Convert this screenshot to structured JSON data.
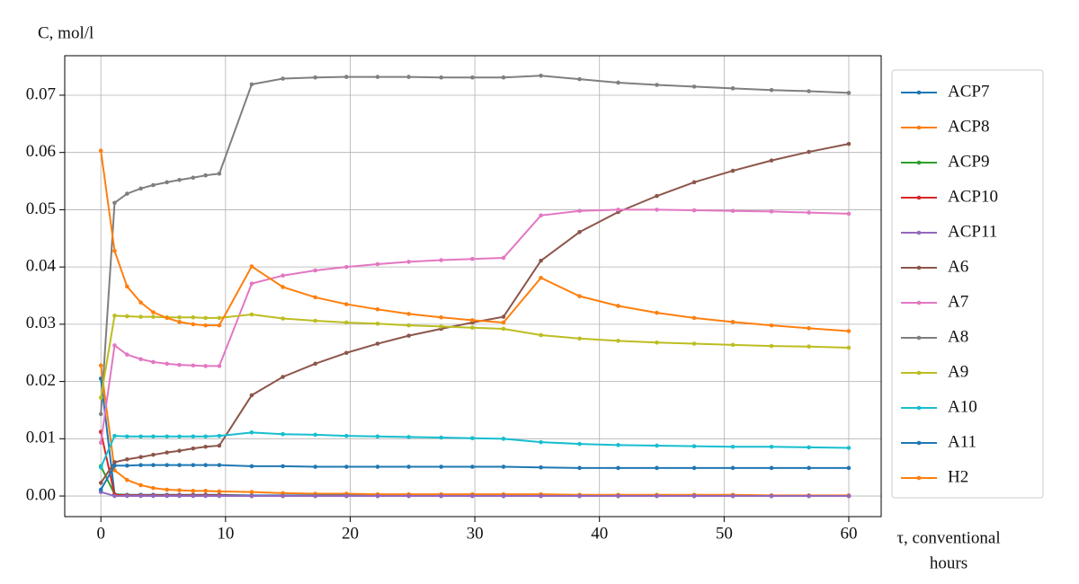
{
  "chart_data": {
    "type": "line",
    "y_label": "C, mol/l",
    "x_label": [
      "τ, conventional",
      "hours"
    ],
    "x": [
      0,
      1.1,
      2.1,
      3.2,
      4.2,
      5.3,
      6.3,
      7.4,
      8.4,
      9.5,
      12.1,
      14.6,
      17.2,
      19.7,
      22.2,
      24.7,
      27.3,
      29.8,
      32.3,
      35.3,
      38.4,
      41.5,
      44.6,
      47.6,
      50.7,
      53.8,
      56.8,
      60
    ],
    "xlim": [
      -2.9,
      62.6
    ],
    "xticks": [
      0,
      10,
      20,
      30,
      40,
      50,
      60
    ],
    "ylim": [
      -0.0036,
      0.0769
    ],
    "yticks": [
      {
        "value": 0,
        "label": "0.00"
      },
      0.01,
      0.02,
      0.03,
      0.04,
      0.05,
      0.06,
      0.07
    ],
    "grid": true,
    "legend": "outside-right",
    "series": [
      {
        "name": "ACP7",
        "color": "#1f77b4",
        "values": [
          0.0205,
          0.0003,
          0.0002,
          0.0002,
          0.0002,
          0.0002,
          0.0002,
          0.0002,
          0.0002,
          0.0002,
          0.0001,
          0.0001,
          0.0001,
          0.0001,
          0.0001,
          0.0001,
          0.0001,
          0.0001,
          0.0001,
          0.0001,
          0,
          0,
          0,
          0,
          0,
          0,
          0,
          0
        ]
      },
      {
        "name": "ACP8",
        "color": "#ff7f0e",
        "values": [
          0.0228,
          0.0045,
          0.0028,
          0.0019,
          0.0014,
          0.0011,
          0.001,
          0.0009,
          0.0009,
          0.0008,
          0.0007,
          0.0005,
          0.0004,
          0.0004,
          0.0003,
          0.0003,
          0.0003,
          0.0003,
          0.0003,
          0.0003,
          0.0002,
          0.0002,
          0.0002,
          0.0002,
          0.0002,
          0.0001,
          0.0001,
          0.0001
        ]
      },
      {
        "name": "ACP9",
        "color": "#2ca02c",
        "values": [
          0.0052,
          0.0003,
          0.0001,
          0.0001,
          0.0001,
          0.0001,
          0.0001,
          0.0001,
          0.0001,
          0.0001,
          0,
          0,
          0,
          0,
          0,
          0,
          0,
          0,
          0,
          0,
          0,
          0,
          0,
          0,
          0,
          0,
          0,
          0
        ]
      },
      {
        "name": "ACP10",
        "color": "#d62728",
        "values": [
          0.0112,
          0.0002,
          0.0001,
          0.0001,
          0.0001,
          0.0001,
          0.0001,
          0.0001,
          0.0001,
          0.0001,
          0,
          0,
          0,
          0,
          0,
          0,
          0,
          0,
          0,
          0,
          0,
          0,
          0,
          0,
          0,
          0,
          0,
          0
        ]
      },
      {
        "name": "ACP11",
        "color": "#9467bd",
        "values": [
          0.0007,
          0,
          0,
          0,
          0,
          0,
          0,
          0,
          0,
          0,
          0,
          0,
          0,
          0,
          0,
          0,
          0,
          0,
          0,
          0,
          0,
          0,
          0,
          0,
          0,
          0,
          0,
          0
        ]
      },
      {
        "name": "A6",
        "color": "#8c564b",
        "values": [
          0.0023,
          0.0059,
          0.0064,
          0.0068,
          0.0072,
          0.0076,
          0.0079,
          0.0083,
          0.0086,
          0.0088,
          0.0176,
          0.0208,
          0.0231,
          0.025,
          0.0266,
          0.028,
          0.0292,
          0.0303,
          0.0313,
          0.0411,
          0.0461,
          0.0496,
          0.0524,
          0.0548,
          0.0568,
          0.0586,
          0.0601,
          0.0615
        ]
      },
      {
        "name": "A7",
        "color": "#e377c2",
        "values": [
          0.0093,
          0.0263,
          0.0247,
          0.0239,
          0.0234,
          0.0231,
          0.0229,
          0.0228,
          0.0227,
          0.0227,
          0.0371,
          0.0385,
          0.0394,
          0.04,
          0.0405,
          0.0409,
          0.0412,
          0.0414,
          0.0416,
          0.049,
          0.0498,
          0.05,
          0.05,
          0.0499,
          0.0498,
          0.0497,
          0.0495,
          0.0493
        ]
      },
      {
        "name": "A8",
        "color": "#7f7f7f",
        "values": [
          0.0143,
          0.0512,
          0.0528,
          0.0537,
          0.0543,
          0.0548,
          0.0552,
          0.0556,
          0.056,
          0.0563,
          0.0719,
          0.0729,
          0.0731,
          0.0732,
          0.0732,
          0.0732,
          0.0731,
          0.0731,
          0.0731,
          0.0734,
          0.0728,
          0.0722,
          0.0718,
          0.0715,
          0.0712,
          0.0709,
          0.0707,
          0.0704
        ]
      },
      {
        "name": "A9",
        "color": "#bcbd22",
        "values": [
          0.0172,
          0.0315,
          0.0314,
          0.0313,
          0.0313,
          0.0312,
          0.0312,
          0.0312,
          0.0311,
          0.0311,
          0.0317,
          0.031,
          0.0306,
          0.0303,
          0.0301,
          0.0298,
          0.0296,
          0.0294,
          0.0292,
          0.0281,
          0.0275,
          0.0271,
          0.0268,
          0.0266,
          0.0264,
          0.0262,
          0.0261,
          0.0259
        ]
      },
      {
        "name": "A10",
        "color": "#17becf",
        "values": [
          0.005,
          0.0105,
          0.0104,
          0.0104,
          0.0104,
          0.0104,
          0.0104,
          0.0104,
          0.0104,
          0.0105,
          0.0111,
          0.0108,
          0.0107,
          0.0105,
          0.0104,
          0.0103,
          0.0102,
          0.0101,
          0.01,
          0.0094,
          0.0091,
          0.0089,
          0.0088,
          0.0087,
          0.0086,
          0.0086,
          0.0085,
          0.0084
        ]
      },
      {
        "name": "A11",
        "color": "#1f77b4",
        "values": [
          0.0011,
          0.0053,
          0.0053,
          0.0054,
          0.0054,
          0.0054,
          0.0054,
          0.0054,
          0.0054,
          0.0054,
          0.0052,
          0.0052,
          0.0051,
          0.0051,
          0.0051,
          0.0051,
          0.0051,
          0.0051,
          0.0051,
          0.005,
          0.0049,
          0.0049,
          0.0049,
          0.0049,
          0.0049,
          0.0049,
          0.0049,
          0.0049
        ]
      },
      {
        "name": "H2",
        "color": "#ff7f0e",
        "values": [
          0.0603,
          0.0428,
          0.0366,
          0.0338,
          0.0321,
          0.0311,
          0.0304,
          0.03,
          0.0298,
          0.0298,
          0.0401,
          0.0365,
          0.0347,
          0.0335,
          0.0326,
          0.0318,
          0.0312,
          0.0307,
          0.0303,
          0.0381,
          0.0349,
          0.0332,
          0.032,
          0.0311,
          0.0304,
          0.0298,
          0.0293,
          0.0288
        ]
      }
    ]
  }
}
